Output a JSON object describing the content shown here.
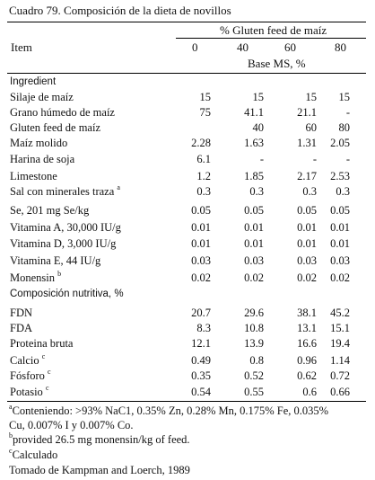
{
  "title": "Cuadro 79. Composición de la dieta de novillos",
  "header": {
    "group": "% Gluten feed de maíz",
    "item": "Item",
    "cols": [
      "0",
      "40",
      "60",
      "80"
    ],
    "base": "Base MS, %"
  },
  "rows": [
    {
      "label": "Ingredient",
      "sans": true,
      "values": [
        "",
        "",
        "",
        ""
      ]
    },
    {
      "label": "Silaje de maíz",
      "values": [
        "15",
        "15",
        "15",
        "15"
      ]
    },
    {
      "label": "Grano húmedo de maíz",
      "values": [
        "75",
        "41.1",
        "21.1",
        "-"
      ]
    },
    {
      "label": "Gluten feed de maíz",
      "values": [
        "",
        "40",
        "60",
        "80"
      ]
    },
    {
      "label": "Maíz molido",
      "values": [
        "2.28",
        "1.63",
        "1.31",
        "2.05"
      ]
    },
    {
      "label": "Harina de soja",
      "values": [
        "6.1",
        "-",
        "-",
        "-"
      ]
    },
    {
      "label": "Limestone",
      "values": [
        "1.2",
        "1.85",
        "2.17",
        "2.53"
      ]
    },
    {
      "label": "Sal con minerales traza",
      "sup": "a",
      "values": [
        "0.3",
        "0.3",
        "0.3",
        "0.3"
      ]
    },
    {
      "label": "Se, 201 mg Se/kg",
      "values": [
        "0.05",
        "0.05",
        "0.05",
        "0.05"
      ]
    },
    {
      "label": "Vitamina A, 30,000 IU/g",
      "values": [
        "0.01",
        "0.01",
        "0.01",
        "0.01"
      ]
    },
    {
      "label": "Vitamina D, 3,000 IU/g",
      "values": [
        "0.01",
        "0.01",
        "0.01",
        "0.01"
      ]
    },
    {
      "label": "Vitamina E, 44 IU/g",
      "values": [
        "0.03",
        "0.03",
        "0.03",
        "0.03"
      ]
    },
    {
      "label": "Monensin",
      "sup": "b",
      "values": [
        "0.02",
        "0.02",
        "0.02",
        "0.02"
      ]
    },
    {
      "label": "Composición nutritiva, %",
      "sans": true,
      "values": [
        "",
        "",
        "",
        ""
      ]
    },
    {
      "label": "FDN",
      "values": [
        "20.7",
        "29.6",
        "38.1",
        "45.2"
      ]
    },
    {
      "label": "FDA",
      "values": [
        "8.3",
        "10.8",
        "13.1",
        "15.1"
      ]
    },
    {
      "label": "Proteina bruta",
      "values": [
        "12.1",
        "13.9",
        "16.6",
        "19.4"
      ]
    },
    {
      "label": "Calcio",
      "sup": "c",
      "values": [
        "0.49",
        "0.8",
        "0.96",
        "1.14"
      ]
    },
    {
      "label": "Fósforo",
      "sup": "c",
      "values": [
        "0.35",
        "0.52",
        "0.62",
        "0.72"
      ]
    },
    {
      "label": "Potasio",
      "sup": "c",
      "values": [
        "0.54",
        "0.55",
        "0.6",
        "0.66"
      ]
    }
  ],
  "notes": {
    "a_sup": "a",
    "a_line1": "Conteniendo: >93% NaC1, 0.35% Zn, 0.28% Mn, 0.175% Fe, 0.035%",
    "a_line2": "Cu, 0.007% I y 0.007% Co.",
    "b_sup": "b",
    "b_line": "provided 26.5 mg monensin/kg of feed.",
    "c_sup": "c",
    "c_line": "Calculado",
    "source": "Tomado de Kampman and Loerch, 1989"
  }
}
